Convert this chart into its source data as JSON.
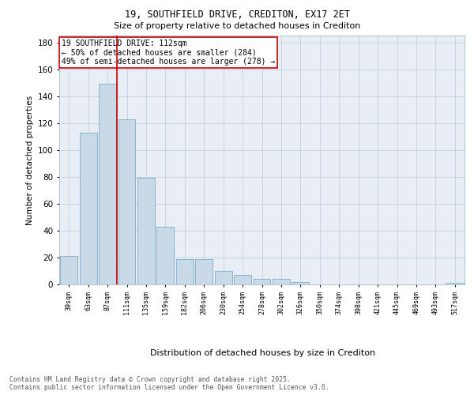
{
  "title": "19, SOUTHFIELD DRIVE, CREDITON, EX17 2ET",
  "subtitle": "Size of property relative to detached houses in Crediton",
  "xlabel": "Distribution of detached houses by size in Crediton",
  "ylabel": "Number of detached properties",
  "categories": [
    "39sqm",
    "63sqm",
    "87sqm",
    "111sqm",
    "135sqm",
    "159sqm",
    "182sqm",
    "206sqm",
    "230sqm",
    "254sqm",
    "278sqm",
    "302sqm",
    "326sqm",
    "350sqm",
    "374sqm",
    "398sqm",
    "421sqm",
    "445sqm",
    "469sqm",
    "493sqm",
    "517sqm"
  ],
  "values": [
    21,
    113,
    149,
    123,
    79,
    43,
    19,
    19,
    10,
    7,
    4,
    4,
    2,
    0,
    0,
    0,
    0,
    0,
    0,
    0,
    1
  ],
  "bar_color": "#c9d9e8",
  "bar_edge_color": "#7aafc8",
  "vline_color": "#cc0000",
  "vline_x": 2.5,
  "annotation_box_text": "19 SOUTHFIELD DRIVE: 112sqm\n← 50% of detached houses are smaller (284)\n49% of semi-detached houses are larger (278) →",
  "box_edge_color": "#cc0000",
  "grid_color": "#c0cfe0",
  "background_color": "#e8eef4",
  "footer_text": "Contains HM Land Registry data © Crown copyright and database right 2025.\nContains public sector information licensed under the Open Government Licence v3.0.",
  "ylim": [
    0,
    185
  ],
  "yticks": [
    0,
    20,
    40,
    60,
    80,
    100,
    120,
    140,
    160,
    180
  ]
}
